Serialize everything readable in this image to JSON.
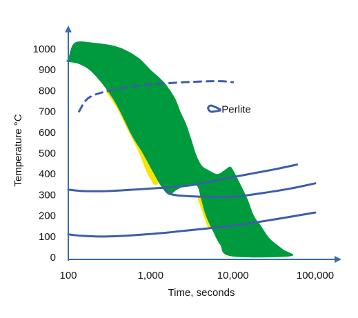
{
  "chart_data": {
    "type": "line",
    "xlabel": "Time, seconds",
    "ylabel": "Temperature °C",
    "xscale": "log",
    "xlim": [
      100,
      100000
    ],
    "ylim": [
      0,
      1050
    ],
    "x_ticks": [
      100,
      1000,
      10000,
      100000
    ],
    "x_tick_labels": [
      "100",
      "1,000",
      "10,000",
      "100,000"
    ],
    "y_ticks": [
      0,
      100,
      200,
      300,
      400,
      500,
      600,
      700,
      800,
      900,
      1000
    ],
    "y_tick_labels": [
      "0",
      "100",
      "200",
      "300",
      "400",
      "500",
      "600",
      "700",
      "800",
      "900",
      "1000"
    ],
    "annotations": [
      {
        "text": "Perlite",
        "x": 6500,
        "y": 710
      }
    ],
    "colors": {
      "axis": "#3b6ab3",
      "curve": "#3c5ea8",
      "band": "#009a3e",
      "band_edge": "#f4e600"
    },
    "curves": [
      {
        "style": "dashed",
        "points": [
          [
            135,
            700
          ],
          [
            170,
            760
          ],
          [
            250,
            790
          ],
          [
            500,
            815
          ],
          [
            1000,
            830
          ],
          [
            2500,
            840
          ],
          [
            5000,
            845
          ],
          [
            7500,
            845
          ],
          [
            10000,
            840
          ]
        ]
      },
      {
        "style": "solid",
        "points": [
          [
            7000,
            710
          ],
          [
            5500,
            728
          ],
          [
            5000,
            718
          ],
          [
            5300,
            700
          ],
          [
            6000,
            700
          ],
          [
            7000,
            705
          ]
        ]
      },
      {
        "style": "solid",
        "points": [
          [
            100,
            325
          ],
          [
            150,
            318
          ],
          [
            300,
            318
          ],
          [
            1000,
            330
          ],
          [
            3000,
            345
          ],
          [
            10000,
            385
          ],
          [
            30000,
            420
          ],
          [
            60000,
            445
          ]
        ]
      },
      {
        "style": "solid",
        "points": [
          [
            1500,
            330
          ],
          [
            1700,
            305
          ],
          [
            2500,
            295
          ],
          [
            5000,
            290
          ],
          [
            10000,
            290
          ],
          [
            20000,
            305
          ],
          [
            50000,
            330
          ],
          [
            100000,
            355
          ]
        ]
      },
      {
        "style": "solid",
        "points": [
          [
            100,
            110
          ],
          [
            150,
            103
          ],
          [
            300,
            100
          ],
          [
            1000,
            112
          ],
          [
            3000,
            130
          ],
          [
            10000,
            152
          ],
          [
            30000,
            180
          ],
          [
            100000,
            215
          ]
        ]
      }
    ],
    "band": {
      "points": [
        [
          95,
          940
        ],
        [
          100,
          955
        ],
        [
          120,
          1030
        ],
        [
          200,
          1030
        ],
        [
          400,
          1010
        ],
        [
          700,
          960
        ],
        [
          1000,
          900
        ],
        [
          1300,
          860
        ],
        [
          1600,
          820
        ],
        [
          2000,
          760
        ],
        [
          2300,
          700
        ],
        [
          2700,
          640
        ],
        [
          3100,
          570
        ],
        [
          3600,
          490
        ],
        [
          4200,
          440
        ],
        [
          5000,
          420
        ],
        [
          6500,
          400
        ],
        [
          8000,
          420
        ],
        [
          9200,
          435
        ],
        [
          10000,
          420
        ],
        [
          12000,
          360
        ],
        [
          15000,
          280
        ],
        [
          18000,
          200
        ],
        [
          22000,
          150
        ],
        [
          28000,
          90
        ],
        [
          40000,
          40
        ],
        [
          50000,
          5
        ],
        [
          9500,
          5
        ],
        [
          7000,
          60
        ],
        [
          5800,
          120
        ],
        [
          4700,
          200
        ],
        [
          4100,
          280
        ],
        [
          3700,
          340
        ],
        [
          3000,
          350
        ],
        [
          2100,
          325
        ],
        [
          1700,
          300
        ],
        [
          1400,
          330
        ],
        [
          1100,
          400
        ],
        [
          800,
          500
        ],
        [
          600,
          580
        ],
        [
          450,
          680
        ],
        [
          350,
          760
        ],
        [
          250,
          840
        ],
        [
          180,
          900
        ],
        [
          130,
          930
        ]
      ]
    },
    "band_edges": [
      {
        "points": [
          [
            310,
            800
          ],
          [
            420,
            720
          ],
          [
            560,
            620
          ],
          [
            750,
            520
          ],
          [
            950,
            420
          ],
          [
            1150,
            360
          ]
        ]
      },
      {
        "points": [
          [
            4050,
            280
          ],
          [
            4600,
            220
          ],
          [
            5300,
            150
          ]
        ]
      }
    ]
  }
}
